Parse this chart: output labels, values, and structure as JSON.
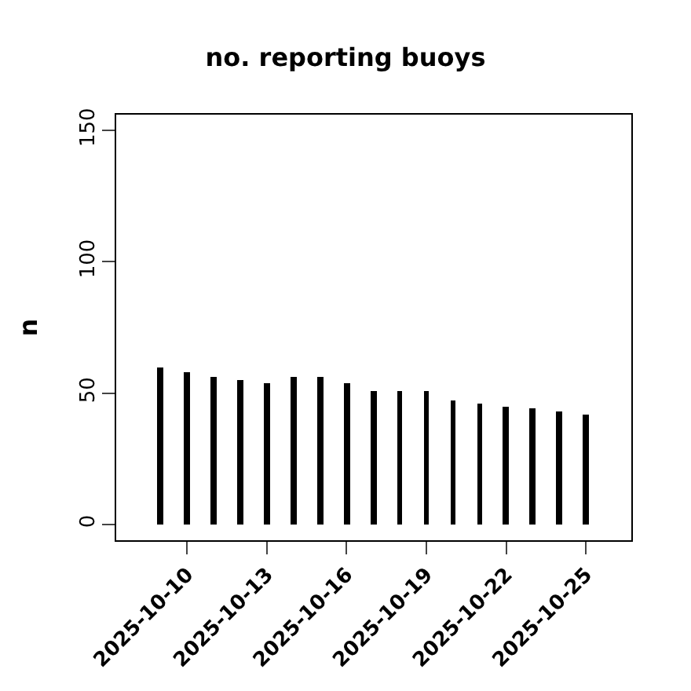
{
  "chart_data": {
    "type": "bar",
    "title": "no. reporting buoys",
    "ylabel": "n",
    "x": [
      "2025-10-09",
      "2025-10-10",
      "2025-10-11",
      "2025-10-12",
      "2025-10-13",
      "2025-10-14",
      "2025-10-15",
      "2025-10-16",
      "2025-10-17",
      "2025-10-18",
      "2025-10-19",
      "2025-10-20",
      "2025-10-21",
      "2025-10-22",
      "2025-10-23",
      "2025-10-24",
      "2025-10-25"
    ],
    "series": [
      {
        "color": "#000000",
        "values": [
          60,
          58,
          56,
          55,
          54,
          56,
          56,
          54,
          51,
          51,
          51,
          47,
          46,
          45,
          44,
          43,
          42
        ]
      }
    ],
    "xlim": [
      "2025-10-07T08:00",
      "2025-10-26T17:00"
    ],
    "xticks": [
      {
        "value": "2025-10-10",
        "label": "2025-10-10"
      },
      {
        "value": "2025-10-13",
        "label": "2025-10-13"
      },
      {
        "value": "2025-10-16",
        "label": "2025-10-16"
      },
      {
        "value": "2025-10-19",
        "label": "2025-10-19"
      },
      {
        "value": "2025-10-22",
        "label": "2025-10-22"
      },
      {
        "value": "2025-10-25",
        "label": "2025-10-25"
      }
    ],
    "ylim": [
      -6,
      156
    ],
    "yticks": [
      0,
      50,
      100,
      150
    ],
    "legend": false
  }
}
